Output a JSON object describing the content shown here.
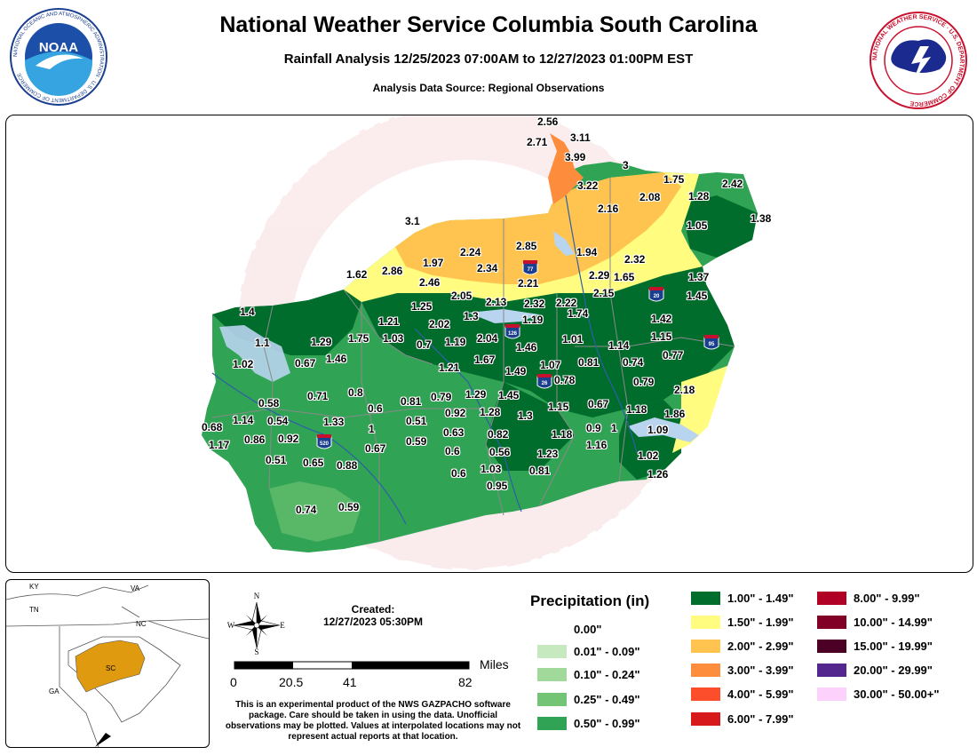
{
  "header": {
    "title": "National Weather Service Columbia South Carolina",
    "subtitle": "Rainfall Analysis 12/25/2023 07:00AM to 12/27/2023 01:00PM EST",
    "source": "Analysis Data Source: Regional Observations"
  },
  "logos": {
    "noaa_text": "NOAA",
    "noaa_ring_text": "NATIONAL OCEANIC AND ATMOSPHERIC ADMINISTRATION · U.S. DEPARTMENT OF COMMERCE",
    "nws_ring_text": "NATIONAL WEATHER SERVICE · U.S. DEPARTMENT OF COMMERCE"
  },
  "map": {
    "watermark": "NATIONAL WEATHER SERVICE · DEPARTMENT OF COMMERCE",
    "interstates": [
      "77",
      "20",
      "126",
      "26",
      "95",
      "520"
    ],
    "observations": [
      "2.56",
      "2.71",
      "3.11",
      "3.99",
      "3",
      "3.22",
      "1.75",
      "2.08",
      "1.28",
      "2.42",
      "2.16",
      "1.05",
      "1.38",
      "3.1",
      "2.85",
      "2.24",
      "1.94",
      "2.34",
      "1.97",
      "2.86",
      "1.62",
      "2.46",
      "2.29",
      "2.32",
      "1.65",
      "2.21",
      "1.37",
      "2.05",
      "2.13",
      "2.32",
      "2.22",
      "2.15",
      "1.45",
      "1.25",
      "1.3",
      "1.74",
      "1.4",
      "2.02",
      "1.19",
      "1.42",
      "1.21",
      "1.29",
      "1.75",
      "1.03",
      "0.7",
      "1.19",
      "2.04",
      "1.46",
      "1.01",
      "1.14",
      "1.15",
      "1.1",
      "1.46",
      "0.67",
      "1.02",
      "1.67",
      "1.21",
      "1.49",
      "1.07",
      "0.81",
      "0.74",
      "0.77",
      "0.8",
      "0.71",
      "0.78",
      "0.79",
      "2.18",
      "0.58",
      "0.79",
      "1.29",
      "1.45",
      "0.81",
      "0.6",
      "0.51",
      "0.92",
      "1.28",
      "1.3",
      "1.15",
      "0.67",
      "1.18",
      "1.86",
      "1.14",
      "0.54",
      "1.33",
      "0.68",
      "1",
      "0.63",
      "0.82",
      "0.9",
      "1",
      "1.09",
      "1.17",
      "0.86",
      "0.92",
      "0.59",
      "1.18",
      "1.16",
      "0.67",
      "0.51",
      "0.65",
      "0.88",
      "0.6",
      "0.56",
      "1.23",
      "1.02",
      "1.03",
      "0.81",
      "1.26",
      "0.6",
      "0.95",
      "0.74",
      "0.59"
    ]
  },
  "inset": {
    "states": [
      "KY",
      "VA",
      "TN",
      "NC",
      "SC",
      "GA"
    ]
  },
  "compass": {
    "n": "N",
    "s": "S",
    "e": "E",
    "w": "W"
  },
  "created": {
    "label": "Created:",
    "value": "12/27/2023 05:30PM"
  },
  "scale": {
    "unit": "Miles",
    "ticks": [
      "0",
      "20.5",
      "41",
      "82"
    ]
  },
  "disclaimer": "This is an experimental product of the NWS GAZPACHO software package. Care should be taken in using the data. Unofficial observations may be plotted. Values at interpolated locations may not represent actual reports at that location.",
  "legend": {
    "title": "Precipitation (in)",
    "items": [
      {
        "label": "0.00\"",
        "color": "#ffffff"
      },
      {
        "label": "0.01\" - 0.09\"",
        "color": "#c7e9c0"
      },
      {
        "label": "0.10\" - 0.24\"",
        "color": "#a1d99b"
      },
      {
        "label": "0.25\" - 0.49\"",
        "color": "#74c476"
      },
      {
        "label": "0.50\" - 0.99\"",
        "color": "#31a354"
      },
      {
        "label": "1.00\" - 1.49\"",
        "color": "#006d2c"
      },
      {
        "label": "1.50\" - 1.99\"",
        "color": "#fffc7f"
      },
      {
        "label": "2.00\" - 2.99\"",
        "color": "#fec44f"
      },
      {
        "label": "3.00\" - 3.99\"",
        "color": "#fd8d3c"
      },
      {
        "label": "4.00\" - 5.99\"",
        "color": "#fc4e2a"
      },
      {
        "label": "6.00\" - 7.99\"",
        "color": "#d7191c"
      },
      {
        "label": "8.00\" - 9.99\"",
        "color": "#b10026"
      },
      {
        "label": "10.00\" - 14.99\"",
        "color": "#800026"
      },
      {
        "label": "15.00\" - 19.99\"",
        "color": "#4d0026"
      },
      {
        "label": "20.00\" - 29.99\"",
        "color": "#54278f"
      },
      {
        "label": "30.00\" - 50.00+\"",
        "color": "#fcd2fc"
      }
    ]
  }
}
